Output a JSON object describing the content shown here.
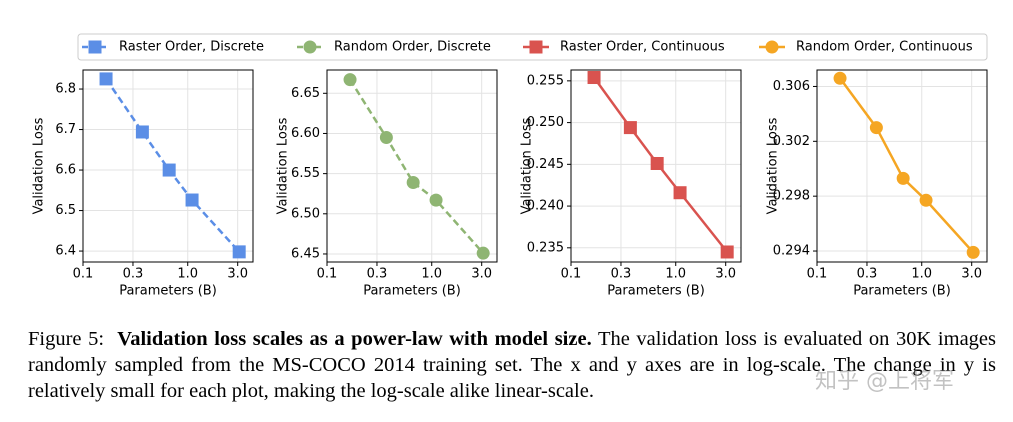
{
  "chart_data": [
    {
      "type": "line",
      "xlabel": "Parameters (B)",
      "ylabel": "Validation Loss",
      "xscale": "log",
      "grid": true,
      "x": [
        0.166,
        0.369,
        0.665,
        1.1,
        3.1
      ],
      "xlim": [
        0.1,
        4.2
      ],
      "xticks": [
        0.1,
        0.3,
        {
          "value": 1,
          "label": "1.0"
        },
        {
          "value": 3,
          "label": "3.0"
        }
      ],
      "ylim": [
        6.373,
        6.847
      ],
      "yticks": [
        6.4,
        6.5,
        6.6,
        6.7,
        6.8
      ],
      "series": [
        {
          "name": "Raster Order, Discrete",
          "color": "#5b8ee6",
          "linestyle": "dashed",
          "marker": "square",
          "values": [
            6.825,
            6.694,
            6.6,
            6.526,
            6.398
          ]
        }
      ]
    },
    {
      "type": "line",
      "xlabel": "Parameters (B)",
      "ylabel": "Validation Loss",
      "xscale": "log",
      "grid": true,
      "x": [
        0.166,
        0.369,
        0.665,
        1.1,
        3.1
      ],
      "xlim": [
        0.1,
        4.2
      ],
      "xticks": [
        0.1,
        0.3,
        {
          "value": 1,
          "label": "1.0"
        },
        {
          "value": 3,
          "label": "3.0"
        }
      ],
      "ylim": [
        6.44,
        6.679
      ],
      "yticks": [
        6.45,
        {
          "value": 6.5,
          "label": "6.50"
        },
        6.55,
        {
          "value": 6.6,
          "label": "6.60"
        },
        6.65
      ],
      "series": [
        {
          "name": "Random Order, Discrete",
          "color": "#8fb573",
          "linestyle": "dashed",
          "marker": "circle",
          "values": [
            6.667,
            6.595,
            6.539,
            6.517,
            6.451
          ]
        }
      ]
    },
    {
      "type": "line",
      "xlabel": "Parameters (B)",
      "ylabel": "Validation Loss",
      "xscale": "log",
      "grid": true,
      "x": [
        0.166,
        0.369,
        0.665,
        1.1,
        3.1
      ],
      "xlim": [
        0.1,
        4.2
      ],
      "xticks": [
        0.1,
        0.3,
        {
          "value": 1,
          "label": "1.0"
        },
        {
          "value": 3,
          "label": "3.0"
        }
      ],
      "ylim": [
        0.2333,
        0.2563
      ],
      "yticks": [
        0.235,
        {
          "value": 0.24,
          "label": "0.240"
        },
        0.245,
        {
          "value": 0.25,
          "label": "0.250"
        },
        0.255
      ],
      "series": [
        {
          "name": "Raster Order, Continuous",
          "color": "#d9534f",
          "linestyle": "solid",
          "marker": "square",
          "values": [
            0.2554,
            0.2494,
            0.2451,
            0.2416,
            0.2345
          ]
        }
      ]
    },
    {
      "type": "line",
      "xlabel": "Parameters (B)",
      "ylabel": "Validation Loss",
      "xscale": "log",
      "grid": true,
      "x": [
        0.166,
        0.369,
        0.665,
        1.1,
        3.1
      ],
      "xlim": [
        0.1,
        4.2
      ],
      "xticks": [
        0.1,
        0.3,
        {
          "value": 1,
          "label": "1.0"
        },
        {
          "value": 3,
          "label": "3.0"
        }
      ],
      "ylim": [
        0.2932,
        0.3072
      ],
      "yticks": [
        0.294,
        0.298,
        0.302,
        0.306
      ],
      "series": [
        {
          "name": "Random Order, Continuous",
          "color": "#f5a623",
          "linestyle": "solid",
          "marker": "circle",
          "values": [
            0.3066,
            0.303,
            0.2993,
            0.2977,
            0.2939
          ]
        }
      ]
    }
  ],
  "caption": {
    "label": "Figure 5:",
    "title": "Validation loss scales as a power-law with model size.",
    "text": "The validation loss is evaluated on 30K images randomly sampled from the MS-COCO 2014 training set. The x and y axes are in log-scale. The change in y is relatively small for each plot, making the log-scale alike linear-scale."
  },
  "watermark": "知乎 @上将军"
}
